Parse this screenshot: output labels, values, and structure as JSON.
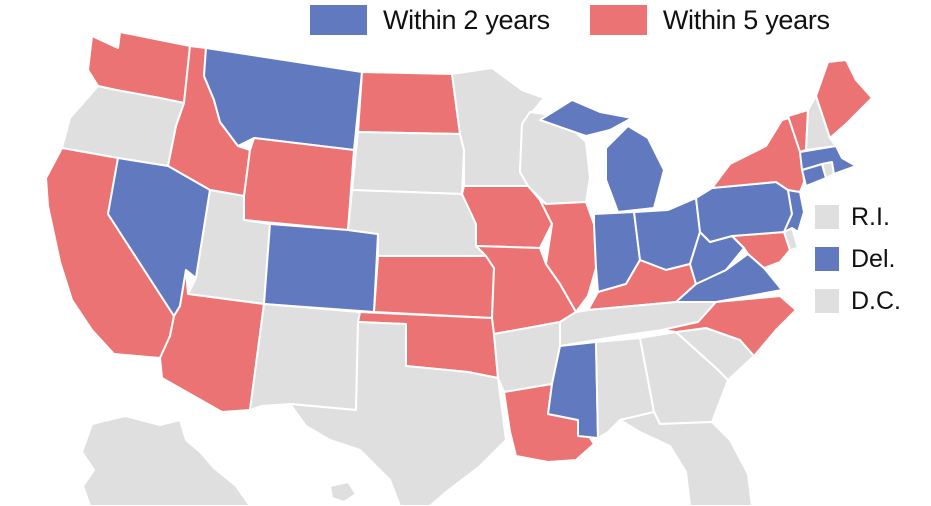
{
  "colors": {
    "within_2": "#6079bf",
    "within_5": "#ec7373",
    "none": "#dfdfdf",
    "background": "#ffffff"
  },
  "legend": {
    "within_2_label": "Within 2 years",
    "within_5_label": "Within 5 years"
  },
  "small_states": [
    {
      "key": "ri",
      "label": "R.I.",
      "category": "none"
    },
    {
      "key": "de",
      "label": "Del.",
      "category": "within_2"
    },
    {
      "key": "dc",
      "label": "D.C.",
      "category": "none"
    }
  ],
  "states": [
    {
      "code": "WA",
      "category": "within_5"
    },
    {
      "code": "OR",
      "category": "none"
    },
    {
      "code": "CA",
      "category": "within_5"
    },
    {
      "code": "ID",
      "category": "within_5"
    },
    {
      "code": "NV",
      "category": "within_2"
    },
    {
      "code": "MT",
      "category": "within_2"
    },
    {
      "code": "WY",
      "category": "within_5"
    },
    {
      "code": "UT",
      "category": "none"
    },
    {
      "code": "AZ",
      "category": "within_5"
    },
    {
      "code": "CO",
      "category": "within_2"
    },
    {
      "code": "NM",
      "category": "none"
    },
    {
      "code": "ND",
      "category": "within_5"
    },
    {
      "code": "SD",
      "category": "none"
    },
    {
      "code": "NE",
      "category": "none"
    },
    {
      "code": "KS",
      "category": "within_5"
    },
    {
      "code": "OK",
      "category": "within_5"
    },
    {
      "code": "TX",
      "category": "none"
    },
    {
      "code": "MN",
      "category": "none"
    },
    {
      "code": "IA",
      "category": "within_5"
    },
    {
      "code": "MO",
      "category": "within_5"
    },
    {
      "code": "AR",
      "category": "none"
    },
    {
      "code": "LA",
      "category": "within_5"
    },
    {
      "code": "WI",
      "category": "none"
    },
    {
      "code": "IL",
      "category": "within_5"
    },
    {
      "code": "MI",
      "category": "within_2"
    },
    {
      "code": "IN",
      "category": "within_2"
    },
    {
      "code": "OH",
      "category": "within_2"
    },
    {
      "code": "KY",
      "category": "within_5"
    },
    {
      "code": "TN",
      "category": "none"
    },
    {
      "code": "MS",
      "category": "within_2"
    },
    {
      "code": "AL",
      "category": "none"
    },
    {
      "code": "GA",
      "category": "none"
    },
    {
      "code": "FL",
      "category": "none"
    },
    {
      "code": "SC",
      "category": "none"
    },
    {
      "code": "NC",
      "category": "within_5"
    },
    {
      "code": "VA",
      "category": "within_2"
    },
    {
      "code": "WV",
      "category": "within_2"
    },
    {
      "code": "MD",
      "category": "within_5"
    },
    {
      "code": "PA",
      "category": "within_2"
    },
    {
      "code": "NJ",
      "category": "within_2"
    },
    {
      "code": "NY",
      "category": "within_5"
    },
    {
      "code": "CT",
      "category": "within_2"
    },
    {
      "code": "MA",
      "category": "within_2"
    },
    {
      "code": "VT",
      "category": "within_5"
    },
    {
      "code": "NH",
      "category": "none"
    },
    {
      "code": "ME",
      "category": "within_5"
    },
    {
      "code": "AK",
      "category": "none"
    },
    {
      "code": "HI",
      "category": "none"
    }
  ]
}
